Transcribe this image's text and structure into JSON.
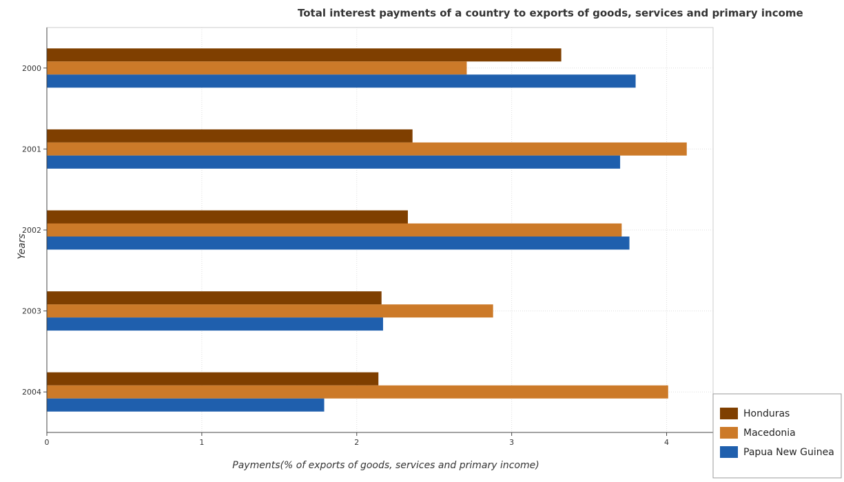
{
  "chart_data": {
    "type": "bar",
    "orientation": "horizontal",
    "title": "Total interest payments of a country to exports of goods, services and primary income",
    "xlabel": "Payments(% of exports of goods, services and primary income)",
    "ylabel": "Years",
    "categories": [
      "2000",
      "2001",
      "2002",
      "2003",
      "2004"
    ],
    "xlim": [
      0,
      4.3
    ],
    "xticks": [
      "0",
      "1",
      "2",
      "3",
      "4"
    ],
    "grid": true,
    "legend_position": "bottom-right",
    "series": [
      {
        "name": "Honduras",
        "color": "#7f3f00",
        "values": [
          3.32,
          2.36,
          2.33,
          2.16,
          2.14
        ]
      },
      {
        "name": "Macedonia",
        "color": "#cc7a29",
        "values": [
          2.71,
          4.13,
          3.71,
          2.88,
          4.01
        ]
      },
      {
        "name": "Papua New Guinea",
        "color": "#1f5fad",
        "values": [
          3.8,
          3.7,
          3.76,
          2.17,
          1.79
        ]
      }
    ]
  }
}
